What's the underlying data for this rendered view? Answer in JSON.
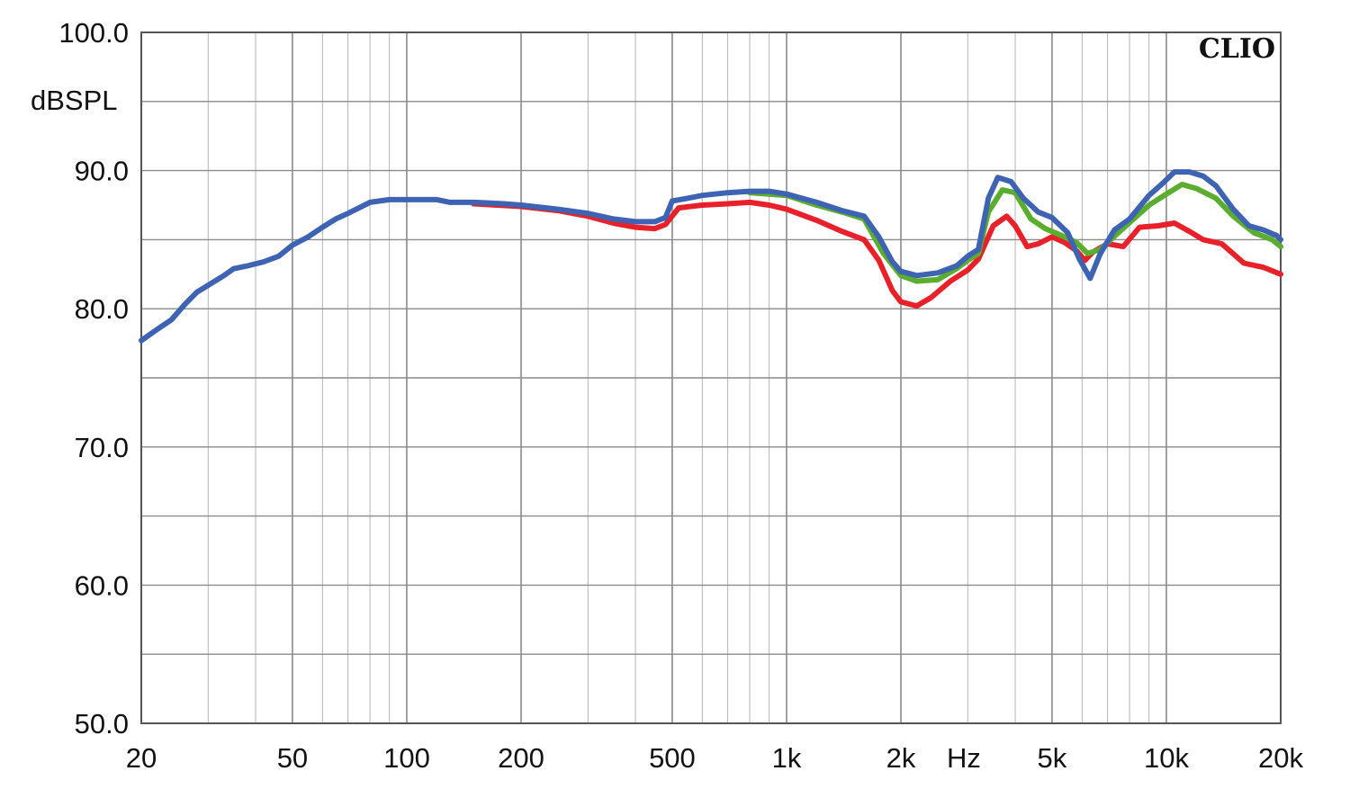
{
  "chart_data": {
    "type": "line",
    "title": "",
    "brand": "CLIO",
    "ylabel": "dBSPL",
    "xlabel": "Hz",
    "x_scale": "log",
    "xlim": [
      20,
      20000
    ],
    "ylim": [
      50,
      100
    ],
    "grid": true,
    "y_ticks": [
      {
        "value": 100,
        "label": "100.0"
      },
      {
        "value": 90,
        "label": "90.0"
      },
      {
        "value": 80,
        "label": "80.0"
      },
      {
        "value": 70,
        "label": "70.0"
      },
      {
        "value": 60,
        "label": "60.0"
      },
      {
        "value": 50,
        "label": "50.0"
      }
    ],
    "x_ticks": [
      {
        "value": 20,
        "label": "20"
      },
      {
        "value": 50,
        "label": "50"
      },
      {
        "value": 100,
        "label": "100"
      },
      {
        "value": 200,
        "label": "200"
      },
      {
        "value": 500,
        "label": "500"
      },
      {
        "value": 1000,
        "label": "1k"
      },
      {
        "value": 2000,
        "label": "2k"
      },
      {
        "value": 5000,
        "label": "5k"
      },
      {
        "value": 10000,
        "label": "10k"
      },
      {
        "value": 20000,
        "label": "20k"
      }
    ],
    "series": [
      {
        "color": "#e8202a",
        "points": [
          [
            150,
            87.6
          ],
          [
            200,
            87.4
          ],
          [
            250,
            87.1
          ],
          [
            300,
            86.7
          ],
          [
            350,
            86.2
          ],
          [
            400,
            85.9
          ],
          [
            450,
            85.8
          ],
          [
            480,
            86.1
          ],
          [
            520,
            87.3
          ],
          [
            600,
            87.5
          ],
          [
            700,
            87.6
          ],
          [
            800,
            87.7
          ],
          [
            900,
            87.5
          ],
          [
            1000,
            87.2
          ],
          [
            1200,
            86.4
          ],
          [
            1400,
            85.6
          ],
          [
            1600,
            85.0
          ],
          [
            1750,
            83.5
          ],
          [
            1900,
            81.3
          ],
          [
            2000,
            80.5
          ],
          [
            2200,
            80.2
          ],
          [
            2400,
            80.8
          ],
          [
            2700,
            82.0
          ],
          [
            3000,
            82.8
          ],
          [
            3200,
            83.6
          ],
          [
            3500,
            86.0
          ],
          [
            3800,
            86.7
          ],
          [
            4000,
            86.0
          ],
          [
            4300,
            84.5
          ],
          [
            4600,
            84.7
          ],
          [
            5000,
            85.2
          ],
          [
            5400,
            84.8
          ],
          [
            5800,
            84.2
          ],
          [
            6100,
            83.5
          ],
          [
            6400,
            84.1
          ],
          [
            7000,
            84.7
          ],
          [
            7700,
            84.5
          ],
          [
            8500,
            85.9
          ],
          [
            9500,
            86.0
          ],
          [
            10500,
            86.2
          ],
          [
            11500,
            85.6
          ],
          [
            12500,
            85.0
          ],
          [
            14000,
            84.7
          ],
          [
            16000,
            83.3
          ],
          [
            18000,
            83.0
          ],
          [
            20000,
            82.5
          ]
        ]
      },
      {
        "color": "#5aad2e",
        "points": [
          [
            800,
            88.4
          ],
          [
            900,
            88.3
          ],
          [
            1000,
            88.2
          ],
          [
            1200,
            87.5
          ],
          [
            1400,
            87.0
          ],
          [
            1600,
            86.5
          ],
          [
            1800,
            84.0
          ],
          [
            2000,
            82.4
          ],
          [
            2200,
            82.0
          ],
          [
            2500,
            82.1
          ],
          [
            2800,
            82.9
          ],
          [
            3000,
            83.5
          ],
          [
            3200,
            84.0
          ],
          [
            3400,
            87.0
          ],
          [
            3700,
            88.6
          ],
          [
            4000,
            88.4
          ],
          [
            4400,
            86.5
          ],
          [
            4800,
            85.8
          ],
          [
            5300,
            85.3
          ],
          [
            5800,
            84.8
          ],
          [
            6200,
            84.0
          ],
          [
            6700,
            84.3
          ],
          [
            7400,
            85.4
          ],
          [
            8200,
            86.5
          ],
          [
            9000,
            87.5
          ],
          [
            10000,
            88.3
          ],
          [
            11000,
            89.0
          ],
          [
            12000,
            88.7
          ],
          [
            13500,
            88.0
          ],
          [
            15000,
            86.7
          ],
          [
            17000,
            85.5
          ],
          [
            19000,
            85.0
          ],
          [
            20000,
            84.5
          ]
        ]
      },
      {
        "color": "#3d63b2",
        "points": [
          [
            20,
            77.7
          ],
          [
            22,
            78.5
          ],
          [
            24,
            79.2
          ],
          [
            26,
            80.3
          ],
          [
            28,
            81.2
          ],
          [
            30,
            81.7
          ],
          [
            33,
            82.4
          ],
          [
            35,
            82.9
          ],
          [
            38,
            83.1
          ],
          [
            42,
            83.4
          ],
          [
            46,
            83.8
          ],
          [
            50,
            84.6
          ],
          [
            55,
            85.2
          ],
          [
            60,
            85.9
          ],
          [
            65,
            86.5
          ],
          [
            70,
            86.9
          ],
          [
            80,
            87.7
          ],
          [
            90,
            87.9
          ],
          [
            100,
            87.9
          ],
          [
            110,
            87.9
          ],
          [
            120,
            87.9
          ],
          [
            130,
            87.7
          ],
          [
            150,
            87.7
          ],
          [
            180,
            87.6
          ],
          [
            200,
            87.5
          ],
          [
            250,
            87.2
          ],
          [
            300,
            86.9
          ],
          [
            350,
            86.5
          ],
          [
            400,
            86.3
          ],
          [
            450,
            86.3
          ],
          [
            480,
            86.6
          ],
          [
            500,
            87.8
          ],
          [
            550,
            88.0
          ],
          [
            600,
            88.2
          ],
          [
            700,
            88.4
          ],
          [
            800,
            88.5
          ],
          [
            900,
            88.5
          ],
          [
            1000,
            88.3
          ],
          [
            1200,
            87.7
          ],
          [
            1400,
            87.1
          ],
          [
            1600,
            86.7
          ],
          [
            1750,
            85.2
          ],
          [
            1900,
            83.4
          ],
          [
            2000,
            82.7
          ],
          [
            2200,
            82.4
          ],
          [
            2500,
            82.6
          ],
          [
            2800,
            83.1
          ],
          [
            3000,
            83.8
          ],
          [
            3200,
            84.3
          ],
          [
            3400,
            88.0
          ],
          [
            3600,
            89.5
          ],
          [
            3900,
            89.2
          ],
          [
            4200,
            88.0
          ],
          [
            4600,
            87.0
          ],
          [
            5000,
            86.6
          ],
          [
            5500,
            85.5
          ],
          [
            5900,
            83.6
          ],
          [
            6300,
            82.2
          ],
          [
            6700,
            84.0
          ],
          [
            7300,
            85.7
          ],
          [
            8000,
            86.5
          ],
          [
            9000,
            88.2
          ],
          [
            9800,
            89.1
          ],
          [
            10500,
            89.9
          ],
          [
            11500,
            89.9
          ],
          [
            12500,
            89.6
          ],
          [
            13500,
            88.9
          ],
          [
            15000,
            87.2
          ],
          [
            16500,
            86.0
          ],
          [
            18000,
            85.7
          ],
          [
            19500,
            85.3
          ],
          [
            20000,
            85.0
          ]
        ]
      }
    ]
  }
}
